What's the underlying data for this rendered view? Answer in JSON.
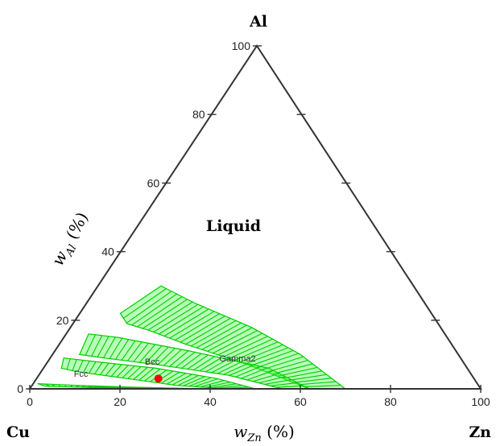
{
  "chart_data": {
    "type": "ternary",
    "vertices": {
      "top": "Al",
      "left": "Cu",
      "right": "Zn"
    },
    "axis_label_wal": {
      "main": "w",
      "sub": "Al",
      "suffix": " (%)"
    },
    "axis_label_wzn": {
      "main": "w",
      "sub": "Zn",
      "suffix": " (%)"
    },
    "left_ticks": [
      0,
      20,
      40,
      60,
      80,
      100
    ],
    "bottom_ticks": [
      0,
      20,
      40,
      60,
      80,
      100
    ],
    "right_ticks": [
      20,
      40,
      60,
      80
    ],
    "region_label": "Liquid",
    "phase_labels": [
      {
        "text": "Gamma2",
        "zn": 38,
        "al": 8
      },
      {
        "text": "Bcc",
        "zn": 22,
        "al": 7
      },
      {
        "text": "Fcc",
        "zn": 8,
        "al": 3.5
      }
    ],
    "two_phase_bands": [
      {
        "name": "upper-band",
        "boundary": [
          [
            14,
            30
          ],
          [
            16,
            29
          ],
          [
            24,
            25
          ],
          [
            40,
            18
          ],
          [
            55,
            10
          ],
          [
            70,
            0
          ],
          [
            62,
            0
          ],
          [
            45,
            7
          ],
          [
            28,
            13
          ],
          [
            18,
            17
          ],
          [
            12,
            19
          ],
          [
            9,
            22
          ]
        ],
        "tie_lines": 36
      },
      {
        "name": "bcc-gamma2-band",
        "boundary": [
          [
            5,
            16
          ],
          [
            12,
            15
          ],
          [
            30,
            11
          ],
          [
            50,
            6
          ],
          [
            62,
            0
          ],
          [
            56,
            0
          ],
          [
            42,
            4
          ],
          [
            25,
            7
          ],
          [
            12,
            9
          ],
          [
            6,
            10
          ]
        ],
        "tie_lines": 34
      },
      {
        "name": "fcc-bcc-band",
        "boundary": [
          [
            3,
            9
          ],
          [
            10,
            8
          ],
          [
            25,
            6
          ],
          [
            40,
            3
          ],
          [
            50,
            0
          ],
          [
            44,
            0
          ],
          [
            32,
            1
          ],
          [
            20,
            3
          ],
          [
            8,
            5
          ],
          [
            4,
            6
          ]
        ],
        "tie_lines": 30
      },
      {
        "name": "fcc-bottom-band",
        "boundary": [
          [
            1,
            1.5
          ],
          [
            10,
            1
          ],
          [
            22,
            0.5
          ],
          [
            39,
            0
          ],
          [
            30,
            0
          ],
          [
            15,
            0.3
          ],
          [
            3,
            0.8
          ]
        ],
        "tie_lines": 24
      }
    ],
    "point": {
      "zn": 27,
      "al": 3,
      "color": "#ff0000"
    },
    "colors": {
      "band_stroke": "#00cc00",
      "band_fill": "#33ff33",
      "triangle": "#333333"
    }
  }
}
